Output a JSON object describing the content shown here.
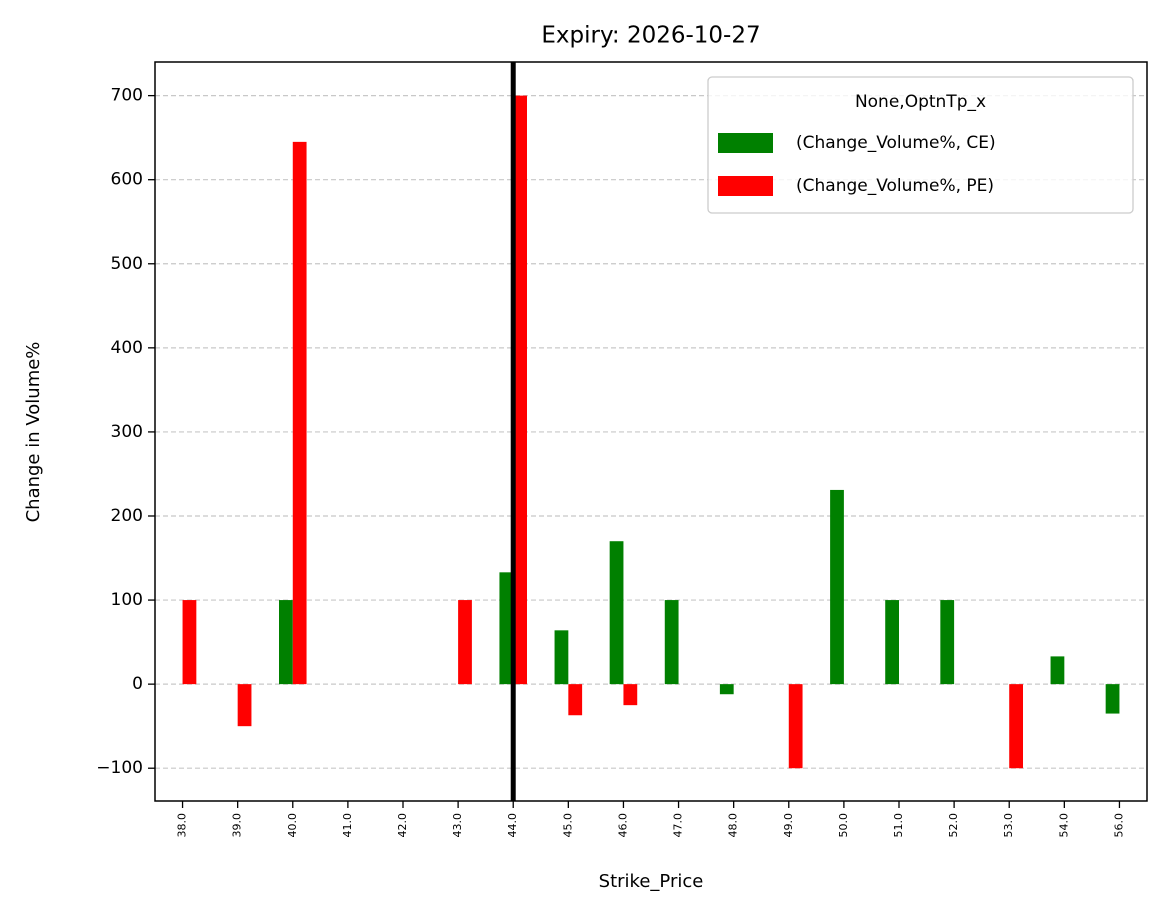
{
  "chart_data": {
    "type": "bar",
    "title": "Expiry: 2026-10-27",
    "x_label": "Strike_Price",
    "y_label": "Change in Volume%",
    "legend_title": "None,OptnTp_x",
    "legend_position": "upper right",
    "categories": [
      "38.0",
      "39.0",
      "40.0",
      "41.0",
      "42.0",
      "43.0",
      "44.0",
      "45.0",
      "46.0",
      "47.0",
      "48.0",
      "49.0",
      "50.0",
      "51.0",
      "52.0",
      "53.0",
      "54.0",
      "56.0"
    ],
    "series": [
      {
        "name": "(Change_Volume%, CE)",
        "color": "#008000",
        "values": [
          null,
          null,
          100,
          null,
          null,
          null,
          133,
          64,
          170,
          100,
          -12,
          null,
          231,
          100,
          100,
          null,
          33,
          -35
        ]
      },
      {
        "name": "(Change_Volume%, PE)",
        "color": "#ff0000",
        "values": [
          100,
          -50,
          645,
          null,
          null,
          100,
          700,
          -37,
          -25,
          null,
          null,
          -100,
          null,
          null,
          null,
          -100,
          null,
          null
        ]
      }
    ],
    "vline": "44.0",
    "ylim": [
      -139,
      740
    ],
    "yticks": [
      {
        "value": -100,
        "label": "−100"
      },
      0,
      100,
      200,
      300,
      400,
      500,
      600,
      700
    ],
    "grid": true
  }
}
